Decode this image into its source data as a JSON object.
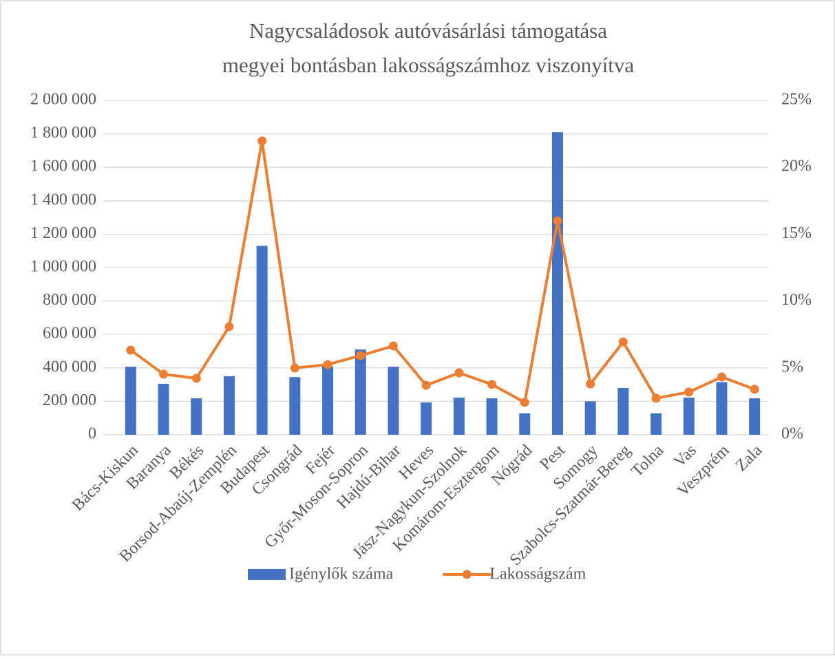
{
  "chart_data": {
    "type": "bar_line",
    "title": [
      "Nagycsaládosok autóvásárlási támogatása",
      "megyei bontásban lakosságszámhoz viszonyítva"
    ],
    "categories": [
      "Bács-Kiskun",
      "Baranya",
      "Békés",
      "Borsod-Abaúj-Zemplén",
      "Budapest",
      "Csongrád",
      "Fejér",
      "Győr-Moson-Sopron",
      "Hajdú-Bihar",
      "Heves",
      "Jász-Nagykun-Szolnok",
      "Komárom-Esztergom",
      "Nógrád",
      "Pest",
      "Somogy",
      "Szabolcs-Szatmár-Bereg",
      "Tolna",
      "Vas",
      "Veszprém",
      "Zala"
    ],
    "series": [
      {
        "name": "Igénylők száma",
        "type": "bar",
        "color": "#4472c4",
        "axis": "y",
        "values": [
          407000,
          305000,
          218000,
          350000,
          1130000,
          345000,
          410000,
          510000,
          407000,
          193000,
          222000,
          218000,
          128000,
          1810000,
          200000,
          280000,
          128000,
          222000,
          315000,
          218000
        ]
      },
      {
        "name": "Lakosságszám",
        "type": "line",
        "color": "#ed7d31",
        "axis": "y2",
        "values": [
          6.33,
          4.53,
          4.22,
          8.08,
          21.97,
          4.99,
          5.25,
          5.92,
          6.64,
          3.7,
          4.63,
          3.76,
          2.42,
          16.0,
          3.8,
          6.94,
          2.73,
          3.19,
          4.32,
          3.4
        ]
      }
    ],
    "ylim": [
      0,
      2000000
    ],
    "yticks": [
      0,
      {
        "value": 200000,
        "label": "200 000"
      },
      {
        "value": 400000,
        "label": "400 000"
      },
      {
        "value": 600000,
        "label": "600 000"
      },
      {
        "value": 800000,
        "label": "800 000"
      },
      {
        "value": 1000000,
        "label": "1 000 000"
      },
      {
        "value": 1200000,
        "label": "1 200 000"
      },
      {
        "value": 1400000,
        "label": "1 400 000"
      },
      {
        "value": 1600000,
        "label": "1 600 000"
      },
      {
        "value": 1800000,
        "label": "1 800 000"
      },
      {
        "value": 2000000,
        "label": "2 000 000"
      }
    ],
    "y2lim": [
      0,
      25
    ],
    "y2ticks": [
      {
        "value": 0,
        "label": "0%"
      },
      {
        "value": 5,
        "label": "5%"
      },
      {
        "value": 10,
        "label": "10%"
      },
      {
        "value": 15,
        "label": "15%"
      },
      {
        "value": 20,
        "label": "20%"
      },
      {
        "value": 25,
        "label": "25%"
      }
    ],
    "grid": true,
    "legend": "bottom"
  }
}
